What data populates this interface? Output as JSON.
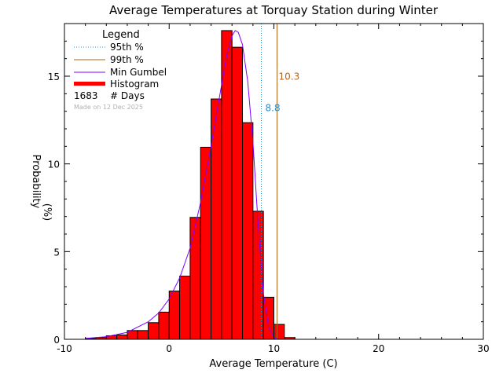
{
  "chart_data": {
    "type": "bar",
    "title": "Average Temperatures at Torquay Station during Winter",
    "xlabel": "Average Temperature (C)",
    "ylabel": "Probability",
    "ylabel_unit": "(%)",
    "xlim": [
      -10,
      30
    ],
    "ylim": [
      0,
      18
    ],
    "xticks": [
      -10,
      0,
      10,
      20,
      30
    ],
    "yticks": [
      0,
      5,
      10,
      15
    ],
    "bin_width": 1,
    "histogram": {
      "bin_starts": [
        -8,
        -7,
        -6,
        -5,
        -4,
        -3,
        -2,
        -1,
        0,
        1,
        2,
        3,
        4,
        5,
        6,
        7,
        8,
        9,
        10,
        11
      ],
      "values": [
        0.05,
        0.1,
        0.2,
        0.25,
        0.5,
        0.5,
        0.95,
        1.55,
        2.75,
        3.6,
        6.95,
        10.95,
        13.7,
        17.6,
        16.65,
        12.35,
        7.3,
        2.4,
        0.85,
        0.1
      ]
    },
    "gumbel_curve": {
      "x": [
        -8,
        -6,
        -4,
        -2,
        -1,
        0,
        1,
        2,
        3,
        4,
        5,
        5.5,
        6,
        6.3,
        6.6,
        7,
        7.5,
        8,
        8.5,
        9,
        9.5,
        10,
        10.5
      ],
      "y": [
        0.05,
        0.15,
        0.4,
        1.0,
        1.5,
        2.3,
        3.5,
        5.2,
        7.8,
        11.0,
        14.5,
        16.2,
        17.3,
        17.6,
        17.5,
        16.8,
        14.7,
        11.2,
        6.5,
        2.6,
        0.7,
        0.1,
        0.0
      ]
    },
    "percentile_95": 8.8,
    "percentile_99": 10.3,
    "legend": {
      "title": "Legend",
      "entries": [
        "95th %",
        "99th %",
        "Min Gumbel",
        "Histogram"
      ],
      "days_count": "1683",
      "days_label": "# Days",
      "made_on": "Made on 12 Dec 2025",
      "placement": "top-left"
    },
    "colors": {
      "histogram_fill": "#ff0000",
      "histogram_edge": "#000000",
      "gumbel": "#8000ff",
      "p95": "#1e90d0",
      "p99": "#b5651d",
      "made_on": "#b0b0b0"
    }
  }
}
